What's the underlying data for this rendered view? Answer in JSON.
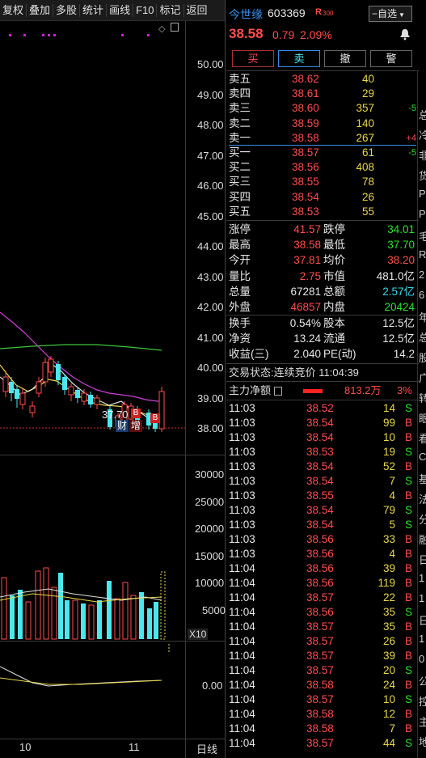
{
  "toolbar": {
    "items": [
      "复权",
      "叠加",
      "多股",
      "统计",
      "画线",
      "F10",
      "标记",
      "返回"
    ]
  },
  "price_axis": {
    "ticks": [
      "50.00",
      "49.00",
      "48.00",
      "47.00",
      "46.00",
      "45.00",
      "44.00",
      "43.00",
      "42.00",
      "41.00",
      "40.00",
      "39.00",
      "38.00"
    ]
  },
  "low_annotation": "37.70",
  "badges": {
    "cai": "财",
    "b1": "B",
    "zeng": "增",
    "b2": "B"
  },
  "volume_axis": {
    "ticks": [
      "30000",
      "25000",
      "20000",
      "15000",
      "10000",
      "5000"
    ],
    "unit": "X10"
  },
  "indicator_axis": {
    "tick": "0.00"
  },
  "date_axis": {
    "labels": [
      "10",
      "11"
    ],
    "period": "日线"
  },
  "header": {
    "name": "今世缘",
    "code": "603369",
    "tag": "R",
    "tag_index": "300",
    "watch_button": "自选",
    "price": "38.58",
    "change": "0.79",
    "change_pct": "2.09%"
  },
  "trade_buttons": [
    "买",
    "卖",
    "撤",
    "警"
  ],
  "order_book": {
    "asks": [
      {
        "label": "卖五",
        "price": "38.62",
        "vol": "40",
        "delta": ""
      },
      {
        "label": "卖四",
        "price": "38.61",
        "vol": "29",
        "delta": ""
      },
      {
        "label": "卖三",
        "price": "38.60",
        "vol": "357",
        "delta": "-5"
      },
      {
        "label": "卖二",
        "price": "38.59",
        "vol": "140",
        "delta": ""
      },
      {
        "label": "卖一",
        "price": "38.58",
        "vol": "267",
        "delta": "+4"
      }
    ],
    "bids": [
      {
        "label": "买一",
        "price": "38.57",
        "vol": "61",
        "delta": "-5"
      },
      {
        "label": "买二",
        "price": "38.56",
        "vol": "408",
        "delta": ""
      },
      {
        "label": "买三",
        "price": "38.55",
        "vol": "78",
        "delta": ""
      },
      {
        "label": "买四",
        "price": "38.54",
        "vol": "26",
        "delta": ""
      },
      {
        "label": "买五",
        "price": "38.53",
        "vol": "55",
        "delta": ""
      }
    ]
  },
  "stats": [
    {
      "l1": "涨停",
      "v1": "41.57",
      "c1": "red",
      "l2": "跌停",
      "v2": "34.01",
      "c2": "green"
    },
    {
      "l1": "最高",
      "v1": "38.58",
      "c1": "red",
      "l2": "最低",
      "v2": "37.70",
      "c2": "green"
    },
    {
      "l1": "今开",
      "v1": "37.81",
      "c1": "red",
      "l2": "均价",
      "v2": "38.20",
      "c2": "red"
    },
    {
      "l1": "量比",
      "v1": "2.75",
      "c1": "red",
      "l2": "市值",
      "v2": "481.0亿",
      "c2": "white"
    },
    {
      "l1": "总量",
      "v1": "67281",
      "c1": "white",
      "l2": "总额",
      "v2": "2.57亿",
      "c2": "cyan"
    },
    {
      "l1": "外盘",
      "v1": "46857",
      "c1": "red",
      "l2": "内盘",
      "v2": "20424",
      "c2": "green"
    }
  ],
  "stats2": [
    {
      "l1": "换手",
      "v1": "0.54%",
      "l2": "股本",
      "v2": "12.5亿"
    },
    {
      "l1": "净资",
      "v1": "13.24",
      "l2": "流通",
      "v2": "12.5亿"
    },
    {
      "l1": "收益(三)",
      "v1": "2.040",
      "l2": "PE(动)",
      "v2": "14.2"
    }
  ],
  "trade_status": {
    "label": "交易状态:",
    "value": "连续竞价",
    "time": "11:04:39"
  },
  "net_flow": {
    "label": "主力净额",
    "amount": "813.2万",
    "pct": "3%"
  },
  "ticks": [
    {
      "t": "11:03",
      "p": "38.52",
      "v": "14",
      "s": "S"
    },
    {
      "t": "11:03",
      "p": "38.54",
      "v": "99",
      "s": "B"
    },
    {
      "t": "11:03",
      "p": "38.54",
      "v": "10",
      "s": "B"
    },
    {
      "t": "11:03",
      "p": "38.53",
      "v": "19",
      "s": "S"
    },
    {
      "t": "11:03",
      "p": "38.54",
      "v": "52",
      "s": "B"
    },
    {
      "t": "11:03",
      "p": "38.54",
      "v": "7",
      "s": "S"
    },
    {
      "t": "11:03",
      "p": "38.55",
      "v": "4",
      "s": "B"
    },
    {
      "t": "11:03",
      "p": "38.54",
      "v": "79",
      "s": "S"
    },
    {
      "t": "11:03",
      "p": "38.54",
      "v": "5",
      "s": "S"
    },
    {
      "t": "11:03",
      "p": "38.56",
      "v": "33",
      "s": "B"
    },
    {
      "t": "11:03",
      "p": "38.56",
      "v": "4",
      "s": "B"
    },
    {
      "t": "11:04",
      "p": "38.56",
      "v": "39",
      "s": "B"
    },
    {
      "t": "11:04",
      "p": "38.56",
      "v": "119",
      "s": "B"
    },
    {
      "t": "11:04",
      "p": "38.57",
      "v": "22",
      "s": "B"
    },
    {
      "t": "11:04",
      "p": "38.56",
      "v": "35",
      "s": "S"
    },
    {
      "t": "11:04",
      "p": "38.57",
      "v": "35",
      "s": "B"
    },
    {
      "t": "11:04",
      "p": "38.57",
      "v": "26",
      "s": "B"
    },
    {
      "t": "11:04",
      "p": "38.57",
      "v": "39",
      "s": "B"
    },
    {
      "t": "11:04",
      "p": "38.57",
      "v": "20",
      "s": "S"
    },
    {
      "t": "11:04",
      "p": "38.58",
      "v": "24",
      "s": "B"
    },
    {
      "t": "11:04",
      "p": "38.57",
      "v": "10",
      "s": "S"
    },
    {
      "t": "11:04",
      "p": "38.58",
      "v": "12",
      "s": "B"
    },
    {
      "t": "11:04",
      "p": "38.58",
      "v": "7",
      "s": "B"
    },
    {
      "t": "11:04",
      "p": "38.57",
      "v": "44",
      "s": "S"
    }
  ],
  "edge_chars": [
    "总",
    "冷",
    "非",
    "货",
    "P",
    "P",
    "毛",
    "R",
    "2",
    "6",
    "年",
    "总",
    "股",
    "广",
    "转",
    "眼",
    "看",
    "C",
    "基",
    "法",
    "分",
    "融",
    "日",
    "1",
    "1",
    "日",
    "1",
    "0",
    "公",
    "控",
    "主",
    "地"
  ],
  "colors": {
    "up": "#ff4d4d",
    "down": "#2ee02e",
    "vol_down": "#4ae8ee",
    "ma_white": "#e0e0e0",
    "ma_yellow": "#e8d84a",
    "ma_magenta": "#d040d8",
    "ma_green": "#3cc83c"
  }
}
